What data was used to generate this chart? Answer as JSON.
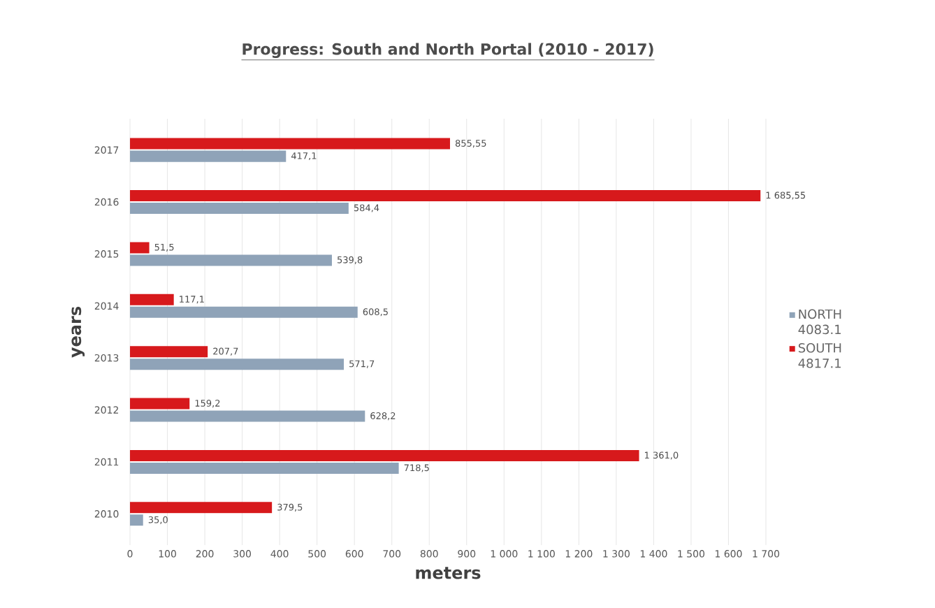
{
  "chart_data": {
    "type": "bar",
    "orientation": "horizontal",
    "title": "Progress: South and North Portal (2010 - 2017)",
    "xlabel": "meters",
    "ylabel": "years",
    "categories": [
      "2017",
      "2016",
      "2015",
      "2014",
      "2013",
      "2012",
      "2011",
      "2010"
    ],
    "series": [
      {
        "name": "NORTH 4083.1",
        "color": "#8fa3b8",
        "values": [
          417.1,
          584.4,
          539.8,
          608.5,
          571.7,
          628.2,
          718.5,
          35.0
        ],
        "value_labels": [
          "417,1",
          "584,4",
          "539,8",
          "608,5",
          "571,7",
          "628,2",
          "718,5",
          "35,0"
        ]
      },
      {
        "name": "SOUTH 4817.1",
        "color": "#d7191c",
        "values": [
          855.55,
          1685.55,
          51.5,
          117.1,
          207.7,
          159.2,
          1361.0,
          379.5
        ],
        "value_labels": [
          "855,55",
          "1 685,55",
          "51,5",
          "117,1",
          "207,7",
          "159,2",
          "1 361,0",
          "379,5"
        ]
      }
    ],
    "xlim": [
      0,
      1700
    ],
    "xticks": [
      0,
      100,
      200,
      300,
      400,
      500,
      600,
      700,
      800,
      900,
      {
        "value": 1000,
        "label": "1 000"
      },
      {
        "value": 1100,
        "label": "1 100"
      },
      {
        "value": 1200,
        "label": "1 200"
      },
      {
        "value": 1300,
        "label": "1 300"
      },
      {
        "value": 1400,
        "label": "1 400"
      },
      {
        "value": 1500,
        "label": "1 500"
      },
      {
        "value": 1600,
        "label": "1 600"
      },
      {
        "value": 1700,
        "label": "1 700"
      }
    ],
    "grid": "x",
    "legend": "right"
  }
}
